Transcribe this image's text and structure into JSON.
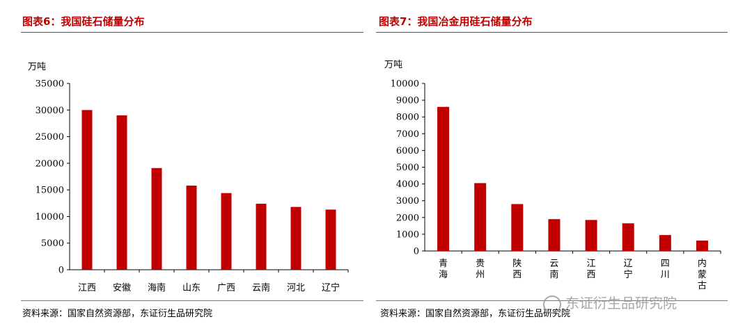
{
  "figures": [
    {
      "title": "图表6：我国硅石储量分布",
      "source": "资料来源：国家自然资源部，东证衍生品研究院"
    },
    {
      "title": "图表7：我国冶金用硅石储量分布",
      "source": "资料来源：国家自然资源部，东证衍生品研究院"
    }
  ],
  "watermark": "东证衍生品研究院",
  "colors": {
    "bar": "#c00000",
    "title": "#c00000"
  },
  "chart_data": [
    {
      "type": "bar",
      "ylabel": "万吨",
      "ylim": [
        0,
        35000
      ],
      "yticks": [
        0,
        5000,
        10000,
        15000,
        20000,
        25000,
        30000,
        35000
      ],
      "categories": [
        "江西",
        "安徽",
        "海南",
        "山东",
        "广西",
        "云南",
        "河北",
        "辽宁"
      ],
      "values": [
        30000,
        29000,
        19100,
        15800,
        14400,
        12400,
        11800,
        11300
      ],
      "grid": false,
      "category_label_orientation": "horizontal"
    },
    {
      "type": "bar",
      "ylabel": "万吨",
      "ylim": [
        0,
        10000
      ],
      "yticks": [
        0,
        1000,
        2000,
        3000,
        4000,
        5000,
        6000,
        7000,
        8000,
        9000,
        10000
      ],
      "categories": [
        "青海",
        "贵州",
        "陕西",
        "云南",
        "江西",
        "辽宁",
        "四川",
        "内蒙古"
      ],
      "values": [
        8600,
        4050,
        2800,
        1900,
        1850,
        1650,
        950,
        620
      ],
      "grid": false,
      "category_label_orientation": "vertical"
    }
  ]
}
